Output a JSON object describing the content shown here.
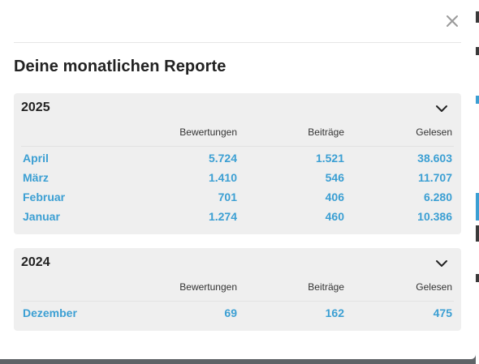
{
  "modal": {
    "title": "Deine monatlichen Reporte",
    "close_icon": "close-icon"
  },
  "columns": [
    "Bewertungen",
    "Beiträge",
    "Gelesen"
  ],
  "years": [
    {
      "year": "2025",
      "rows": [
        {
          "month": "April",
          "bewertungen": "5.724",
          "beitraege": "1.521",
          "gelesen": "38.603"
        },
        {
          "month": "März",
          "bewertungen": "1.410",
          "beitraege": "546",
          "gelesen": "11.707"
        },
        {
          "month": "Februar",
          "bewertungen": "701",
          "beitraege": "406",
          "gelesen": "6.280"
        },
        {
          "month": "Januar",
          "bewertungen": "1.274",
          "beitraege": "460",
          "gelesen": "10.386"
        }
      ]
    },
    {
      "year": "2024",
      "rows": [
        {
          "month": "Dezember",
          "bewertungen": "69",
          "beitraege": "162",
          "gelesen": "475"
        }
      ]
    }
  ],
  "colors": {
    "link": "#3b9fd3",
    "card_bg": "#efefef",
    "overlay": "#5f6367"
  }
}
